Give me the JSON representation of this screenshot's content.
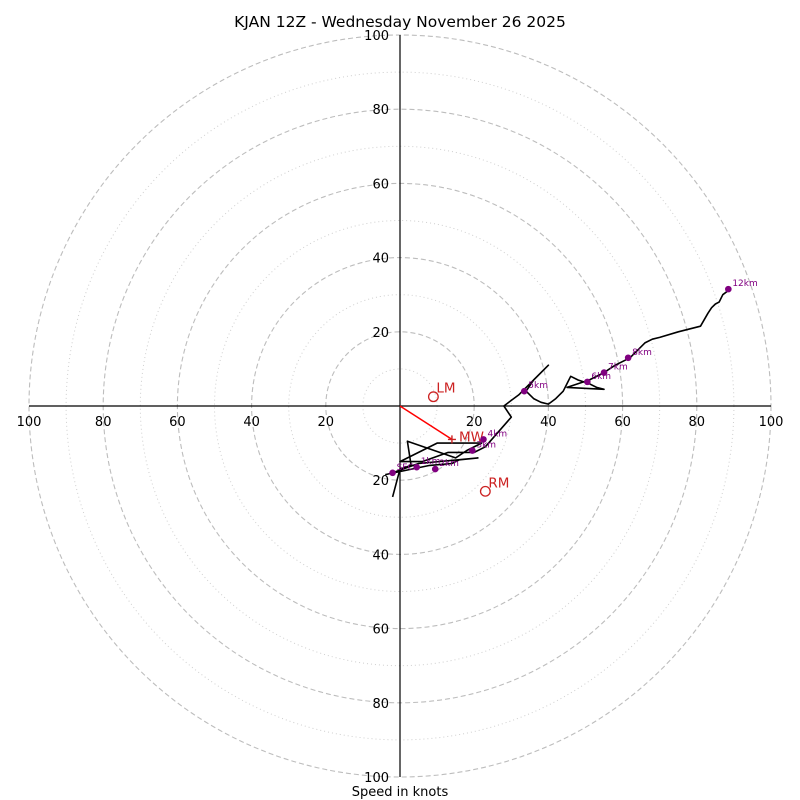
{
  "chart_data": {
    "type": "hodograph",
    "title": "KJAN 12Z - Wednesday November 26 2025",
    "xlabel": "Speed in knots",
    "range": [
      -100,
      100
    ],
    "ring_major": [
      20,
      40,
      60,
      80,
      100
    ],
    "ring_minor": [
      10,
      30,
      50,
      70,
      90
    ],
    "tick_labels": {
      "x": [
        {
          "v": -100,
          "t": "100"
        },
        {
          "v": -80,
          "t": "80"
        },
        {
          "v": -60,
          "t": "60"
        },
        {
          "v": -40,
          "t": "40"
        },
        {
          "v": -20,
          "t": "20"
        },
        {
          "v": 20,
          "t": "20"
        },
        {
          "v": 40,
          "t": "40"
        },
        {
          "v": 60,
          "t": "60"
        },
        {
          "v": 80,
          "t": "80"
        },
        {
          "v": 100,
          "t": "100"
        }
      ],
      "y": [
        {
          "v": 100,
          "t": "100"
        },
        {
          "v": 80,
          "t": "80"
        },
        {
          "v": 60,
          "t": "60"
        },
        {
          "v": 40,
          "t": "40"
        },
        {
          "v": 20,
          "t": "20"
        },
        {
          "v": -20,
          "t": "20"
        },
        {
          "v": -40,
          "t": "40"
        },
        {
          "v": -60,
          "t": "60"
        },
        {
          "v": -80,
          "t": "80"
        },
        {
          "v": -100,
          "t": "100"
        }
      ]
    },
    "trace": [
      [
        -2,
        -24.5
      ],
      [
        0,
        -17
      ],
      [
        3,
        -16
      ],
      [
        2,
        -9.5
      ],
      [
        15,
        -14
      ],
      [
        18,
        -12
      ],
      [
        22,
        -10
      ],
      [
        10,
        -10
      ],
      [
        0,
        -15
      ],
      [
        6,
        -15
      ],
      [
        13,
        -12.5
      ],
      [
        20,
        -12.5
      ],
      [
        23,
        -11
      ],
      [
        30,
        -3
      ],
      [
        28,
        0
      ],
      [
        30,
        1.5
      ],
      [
        32,
        3
      ],
      [
        35,
        6
      ],
      [
        40,
        11
      ],
      [
        36,
        7
      ],
      [
        34,
        4
      ],
      [
        36,
        2
      ],
      [
        38,
        1
      ],
      [
        40,
        0.5
      ],
      [
        42,
        2
      ],
      [
        44,
        4
      ],
      [
        46,
        8
      ],
      [
        48,
        7
      ],
      [
        51,
        6
      ],
      [
        53,
        5
      ],
      [
        55,
        4.5
      ],
      [
        45,
        5
      ],
      [
        51,
        7
      ],
      [
        55,
        9
      ],
      [
        58,
        11
      ],
      [
        62,
        13
      ],
      [
        64,
        15
      ],
      [
        66,
        17
      ],
      [
        68,
        18
      ],
      [
        70,
        18.5
      ],
      [
        75,
        20
      ],
      [
        81,
        21.5
      ],
      [
        83,
        25
      ],
      [
        84,
        26.5
      ],
      [
        85,
        27.5
      ],
      [
        86,
        28
      ],
      [
        87,
        30
      ],
      [
        89,
        31.5
      ]
    ],
    "lower_branch": [
      [
        -4,
        -18.5
      ],
      [
        8,
        -16
      ],
      [
        14,
        -15.5
      ],
      [
        16,
        -14.5
      ],
      [
        21,
        -14
      ],
      [
        5,
        -15.5
      ],
      [
        -2,
        -18
      ]
    ],
    "height_markers": [
      {
        "label": "SFC",
        "u": -2,
        "v": -18
      },
      {
        "label": "1km",
        "u": 4.5,
        "v": -16.5
      },
      {
        "label": "2km",
        "u": 9.5,
        "v": -17
      },
      {
        "label": "3km",
        "u": 19.5,
        "v": -12
      },
      {
        "label": "4km",
        "u": 22.5,
        "v": -9
      },
      {
        "label": "5km",
        "u": 33.5,
        "v": 4
      },
      {
        "label": "6km",
        "u": 50.5,
        "v": 6.5
      },
      {
        "label": "7km",
        "u": 55,
        "v": 9
      },
      {
        "label": "8km",
        "u": 61.5,
        "v": 13
      },
      {
        "label": "12km",
        "u": 88.5,
        "v": 31.5
      }
    ],
    "storm_motion": {
      "LM": {
        "label": "LM",
        "u": 9,
        "v": 2.5
      },
      "RM": {
        "label": "RM",
        "u": 23,
        "v": -23
      },
      "MW": {
        "label": "MW",
        "u": 14,
        "v": -9
      }
    },
    "colors": {
      "trace": "#000000",
      "marker": "#800080",
      "storm": "#cc2222",
      "grid": "#bdbdbd"
    }
  }
}
